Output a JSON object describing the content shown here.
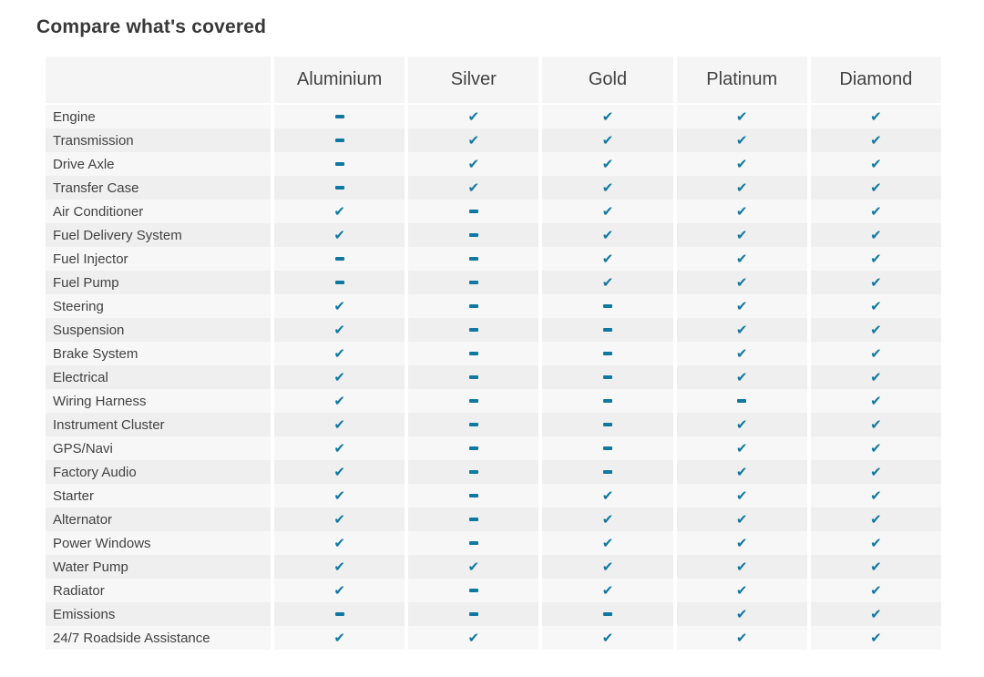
{
  "title": "Compare what's covered",
  "colors": {
    "accent_teal": "#1178a0",
    "header_bg": "#f5f5f5",
    "row_odd_bg": "#f7f7f7",
    "row_even_bg": "#efefef",
    "text": "#424242"
  },
  "icons": {
    "check_icon": "check-icon",
    "check_glyph": "✔",
    "dash_icon": "dash-icon"
  },
  "table": {
    "columns": [
      "Aluminium",
      "Silver",
      "Gold",
      "Platinum",
      "Diamond"
    ],
    "rows": [
      {
        "label": "Engine",
        "values": [
          "dash",
          "check",
          "check",
          "check",
          "check"
        ]
      },
      {
        "label": "Transmission",
        "values": [
          "dash",
          "check",
          "check",
          "check",
          "check"
        ]
      },
      {
        "label": "Drive Axle",
        "values": [
          "dash",
          "check",
          "check",
          "check",
          "check"
        ]
      },
      {
        "label": "Transfer Case",
        "values": [
          "dash",
          "check",
          "check",
          "check",
          "check"
        ]
      },
      {
        "label": "Air Conditioner",
        "values": [
          "check",
          "dash",
          "check",
          "check",
          "check"
        ]
      },
      {
        "label": "Fuel Delivery System",
        "values": [
          "check",
          "dash",
          "check",
          "check",
          "check"
        ]
      },
      {
        "label": "Fuel Injector",
        "values": [
          "dash",
          "dash",
          "check",
          "check",
          "check"
        ]
      },
      {
        "label": "Fuel Pump",
        "values": [
          "dash",
          "dash",
          "check",
          "check",
          "check"
        ]
      },
      {
        "label": "Steering",
        "values": [
          "check",
          "dash",
          "dash",
          "check",
          "check"
        ]
      },
      {
        "label": "Suspension",
        "values": [
          "check",
          "dash",
          "dash",
          "check",
          "check"
        ]
      },
      {
        "label": "Brake System",
        "values": [
          "check",
          "dash",
          "dash",
          "check",
          "check"
        ]
      },
      {
        "label": "Electrical",
        "values": [
          "check",
          "dash",
          "dash",
          "check",
          "check"
        ]
      },
      {
        "label": "Wiring Harness",
        "values": [
          "check",
          "dash",
          "dash",
          "dash",
          "check"
        ]
      },
      {
        "label": "Instrument Cluster",
        "values": [
          "check",
          "dash",
          "dash",
          "check",
          "check"
        ]
      },
      {
        "label": "GPS/Navi",
        "values": [
          "check",
          "dash",
          "dash",
          "check",
          "check"
        ]
      },
      {
        "label": "Factory Audio",
        "values": [
          "check",
          "dash",
          "dash",
          "check",
          "check"
        ]
      },
      {
        "label": "Starter",
        "values": [
          "check",
          "dash",
          "check",
          "check",
          "check"
        ]
      },
      {
        "label": "Alternator",
        "values": [
          "check",
          "dash",
          "check",
          "check",
          "check"
        ]
      },
      {
        "label": "Power Windows",
        "values": [
          "check",
          "dash",
          "check",
          "check",
          "check"
        ]
      },
      {
        "label": "Water Pump",
        "values": [
          "check",
          "check",
          "check",
          "check",
          "check"
        ]
      },
      {
        "label": "Radiator",
        "values": [
          "check",
          "dash",
          "check",
          "check",
          "check"
        ]
      },
      {
        "label": "Emissions",
        "values": [
          "dash",
          "dash",
          "dash",
          "check",
          "check"
        ]
      },
      {
        "label": "24/7 Roadside Assistance",
        "values": [
          "check",
          "check",
          "check",
          "check",
          "check"
        ]
      }
    ]
  }
}
